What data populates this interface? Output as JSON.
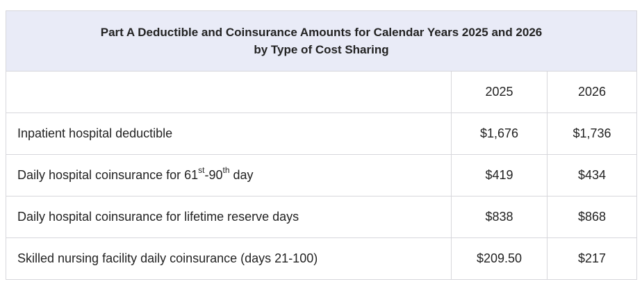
{
  "table": {
    "title_line1": "Part A Deductible and Coinsurance Amounts for Calendar Years 2025 and 2026",
    "title_line2": "by Type of Cost Sharing",
    "header": {
      "blank": "",
      "col1": "2025",
      "col2": "2026"
    },
    "rows": [
      {
        "label": "Inpatient hospital deductible",
        "v2025": "$1,676",
        "v2026": "$1,736"
      },
      {
        "label_pre": "Daily hospital coinsurance for 61",
        "label_sup1": "st",
        "label_mid": "-90",
        "label_sup2": "th",
        "label_post": " day",
        "v2025": "$419",
        "v2026": "$434"
      },
      {
        "label": "Daily hospital coinsurance for lifetime reserve days",
        "v2025": "$838",
        "v2026": "$868"
      },
      {
        "label": "Skilled nursing facility daily coinsurance (days 21-100)",
        "v2025": "$209.50",
        "v2026": "$217"
      }
    ]
  }
}
